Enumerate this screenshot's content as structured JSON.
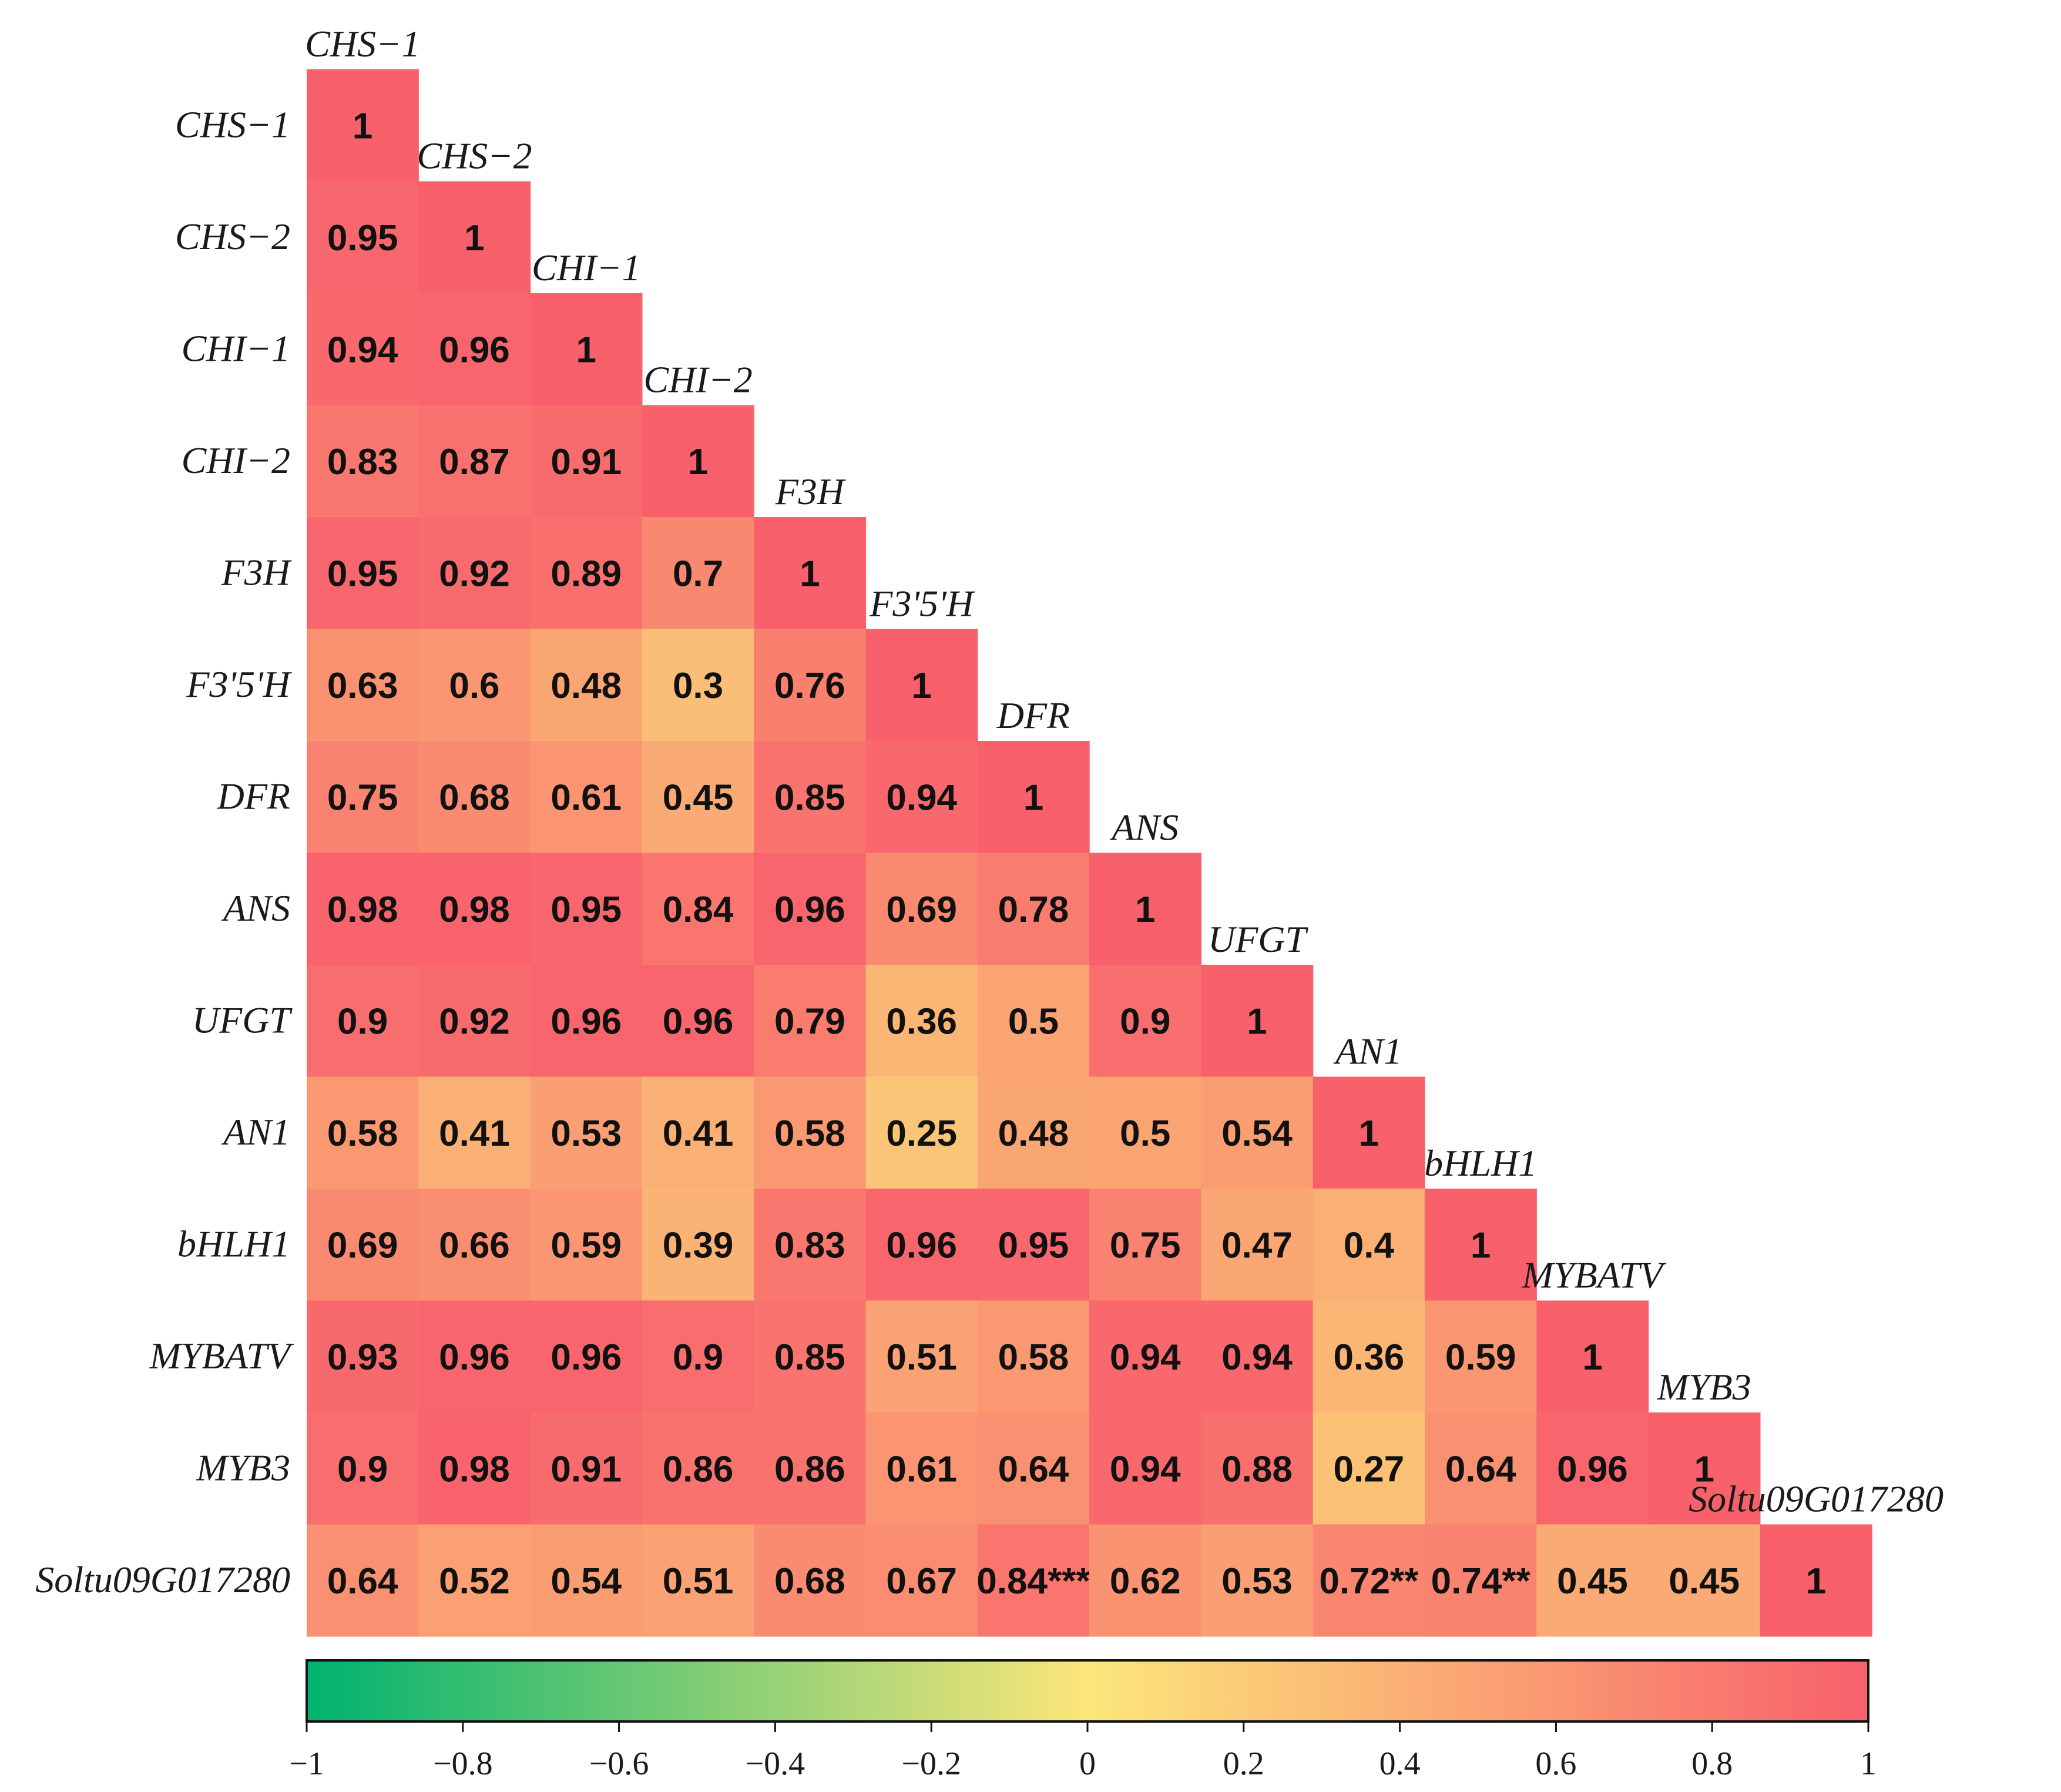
{
  "chart_data": {
    "type": "heatmap",
    "variables": [
      "CHS−1",
      "CHS−2",
      "CHI−1",
      "CHI−2",
      "F3H",
      "F3'5'H",
      "DFR",
      "ANS",
      "UFGT",
      "AN1",
      "bHLH1",
      "MYBATV",
      "MYB3",
      "Soltu09G017280"
    ],
    "matrix_lower": [
      [
        "1"
      ],
      [
        "0.95",
        "1"
      ],
      [
        "0.94",
        "0.96",
        "1"
      ],
      [
        "0.83",
        "0.87",
        "0.91",
        "1"
      ],
      [
        "0.95",
        "0.92",
        "0.89",
        "0.7",
        "1"
      ],
      [
        "0.63",
        "0.6",
        "0.48",
        "0.3",
        "0.76",
        "1"
      ],
      [
        "0.75",
        "0.68",
        "0.61",
        "0.45",
        "0.85",
        "0.94",
        "1"
      ],
      [
        "0.98",
        "0.98",
        "0.95",
        "0.84",
        "0.96",
        "0.69",
        "0.78",
        "1"
      ],
      [
        "0.9",
        "0.92",
        "0.96",
        "0.96",
        "0.79",
        "0.36",
        "0.5",
        "0.9",
        "1"
      ],
      [
        "0.58",
        "0.41",
        "0.53",
        "0.41",
        "0.58",
        "0.25",
        "0.48",
        "0.5",
        "0.54",
        "1"
      ],
      [
        "0.69",
        "0.66",
        "0.59",
        "0.39",
        "0.83",
        "0.96",
        "0.95",
        "0.75",
        "0.47",
        "0.4",
        "1"
      ],
      [
        "0.93",
        "0.96",
        "0.96",
        "0.9",
        "0.85",
        "0.51",
        "0.58",
        "0.94",
        "0.94",
        "0.36",
        "0.59",
        "1"
      ],
      [
        "0.9",
        "0.98",
        "0.91",
        "0.86",
        "0.86",
        "0.61",
        "0.64",
        "0.94",
        "0.88",
        "0.27",
        "0.64",
        "0.96",
        "1"
      ],
      [
        "0.64",
        "0.52",
        "0.54",
        "0.51",
        "0.68",
        "0.67",
        "0.84***",
        "0.62",
        "0.53",
        "0.72**",
        "0.74**",
        "0.45",
        "0.45",
        "1"
      ]
    ],
    "color_scale": {
      "min": -1,
      "max": 1,
      "low_color": "#00b36f",
      "mid_color": "#fce67a",
      "high_color": "#f8606c"
    },
    "colorbar_ticks": [
      "−1",
      "−0.8",
      "−0.6",
      "−0.4",
      "−0.2",
      "0",
      "0.2",
      "0.4",
      "0.6",
      "0.8",
      "1"
    ]
  }
}
